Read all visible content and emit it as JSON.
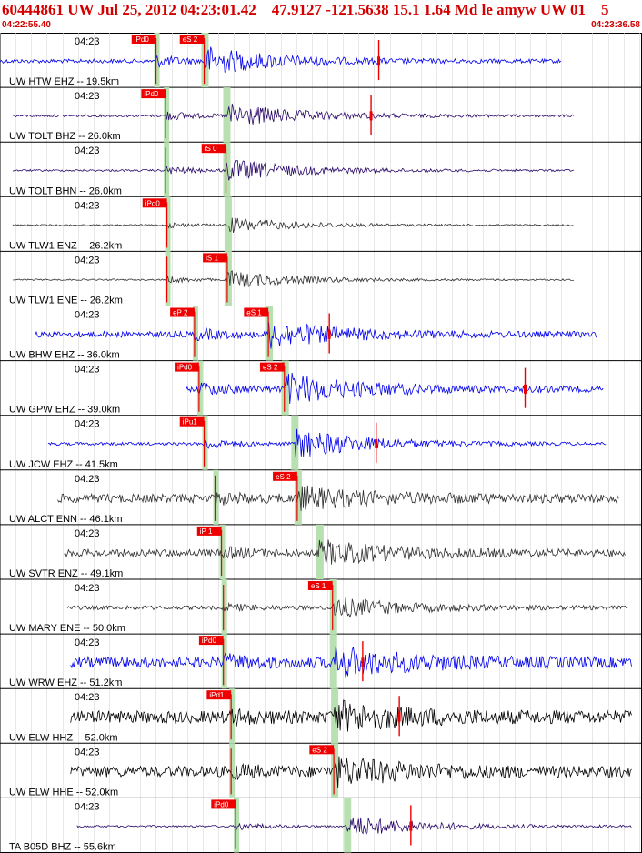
{
  "header": {
    "title": "60444861 UW Jul 25, 2012 04:23:01.42    47.9127 -121.5638 15.1 1.64 Md le amyw UW 01    5",
    "start_time": "04:22:55.40",
    "end_time": "04:23:36.58"
  },
  "time_label": "04:23",
  "colors": {
    "blue": "#0000ee",
    "purple": "#2a0a6a",
    "darkgray": "#303030",
    "black": "#000000",
    "pick": "#ee0000",
    "window": "#b8e0b0"
  },
  "traces": [
    {
      "label": "UW HTW EHZ -- 19.5km",
      "color": "blue",
      "start": 0.0,
      "end": 0.875,
      "amp": 0.55,
      "noise": 0.08,
      "p_label": "iPd0",
      "p_pos": 0.243,
      "s_label": "eS 2",
      "s_pos": 0.318,
      "red_pos": 0.59
    },
    {
      "label": "UW TOLT BHZ -- 26.0km",
      "color": "purple",
      "start": 0.02,
      "end": 0.895,
      "amp": 0.5,
      "noise": 0.05,
      "p_label": "iPd0",
      "p_pos": 0.258,
      "s_label": "",
      "s_pos": 0.352,
      "red_pos": 0.578
    },
    {
      "label": "UW TOLT BHN -- 26.0km",
      "color": "purple",
      "start": 0.02,
      "end": 0.895,
      "amp": 0.45,
      "noise": 0.04,
      "p_label": "",
      "p_pos": 0.258,
      "s_label": "iS 0",
      "s_pos": 0.352,
      "red_pos": -1
    },
    {
      "label": "UW TLW1 ENZ -- 26.2km",
      "color": "darkgray",
      "start": 0.02,
      "end": 0.895,
      "amp": 0.3,
      "noise": 0.03,
      "p_label": "iPd0",
      "p_pos": 0.26,
      "s_label": "",
      "s_pos": 0.354,
      "red_pos": -1
    },
    {
      "label": "UW TLW1 ENE -- 26.2km",
      "color": "darkgray",
      "start": 0.02,
      "end": 0.895,
      "amp": 0.35,
      "noise": 0.03,
      "p_label": "",
      "p_pos": 0.26,
      "s_label": "iS 1",
      "s_pos": 0.354,
      "red_pos": -1
    },
    {
      "label": "UW BHW EHZ -- 36.0km",
      "color": "blue",
      "start": 0.055,
      "end": 0.93,
      "amp": 0.5,
      "noise": 0.12,
      "p_label": "eP 2",
      "p_pos": 0.303,
      "s_label": "eS 1",
      "s_pos": 0.418,
      "red_pos": 0.513
    },
    {
      "label": "UW GPW EHZ -- 39.0km",
      "color": "blue",
      "start": 0.29,
      "end": 0.94,
      "amp": 0.6,
      "noise": 0.12,
      "p_label": "iPd0",
      "p_pos": 0.31,
      "s_label": "eS 2",
      "s_pos": 0.443,
      "red_pos": 0.818
    },
    {
      "label": "UW JCW EHZ -- 41.5km",
      "color": "blue",
      "start": 0.075,
      "end": 0.945,
      "amp": 0.6,
      "noise": 0.06,
      "p_label": "iPu1",
      "p_pos": 0.318,
      "s_label": "",
      "s_pos": 0.458,
      "red_pos": 0.586
    },
    {
      "label": "UW ALCT ENN -- 46.1km",
      "color": "darkgray",
      "start": 0.09,
      "end": 0.965,
      "amp": 0.4,
      "noise": 0.18,
      "p_label": "",
      "p_pos": 0.335,
      "s_label": "eS 2",
      "s_pos": 0.463,
      "red_pos": -1
    },
    {
      "label": "UW SVTR ENZ -- 49.1km",
      "color": "darkgray",
      "start": 0.1,
      "end": 0.975,
      "amp": 0.45,
      "noise": 0.15,
      "p_label": "iP 1",
      "p_pos": 0.345,
      "s_label": "",
      "s_pos": 0.497,
      "red_pos": -1
    },
    {
      "label": "UW MARY ENE -- 50.0km",
      "color": "darkgray",
      "start": 0.105,
      "end": 0.98,
      "amp": 0.4,
      "noise": 0.08,
      "p_label": "",
      "p_pos": 0.348,
      "s_label": "eS 1",
      "s_pos": 0.518,
      "red_pos": -1
    },
    {
      "label": "UW WRW EHZ -- 51.2km",
      "color": "blue",
      "start": 0.11,
      "end": 0.985,
      "amp": 0.55,
      "noise": 0.22,
      "p_label": "iPd0",
      "p_pos": 0.348,
      "s_label": "",
      "s_pos": 0.518,
      "red_pos": 0.565
    },
    {
      "label": "UW ELW HHZ -- 52.0km",
      "color": "black",
      "start": 0.11,
      "end": 0.985,
      "amp": 0.5,
      "noise": 0.25,
      "p_label": "iPd1",
      "p_pos": 0.36,
      "s_label": "",
      "s_pos": 0.52,
      "red_pos": 0.622
    },
    {
      "label": "UW ELW HHE -- 52.0km",
      "color": "black",
      "start": 0.11,
      "end": 0.985,
      "amp": 0.5,
      "noise": 0.22,
      "p_label": "",
      "p_pos": 0.36,
      "s_label": "eS 2",
      "s_pos": 0.52,
      "red_pos": -1
    },
    {
      "label": "TA B05D BHZ -- 55.6km",
      "color": "purple",
      "start": 0.12,
      "end": 0.985,
      "amp": 0.45,
      "noise": 0.04,
      "p_label": "iPd0",
      "p_pos": 0.367,
      "s_label": "",
      "s_pos": 0.54,
      "red_pos": 0.64
    }
  ]
}
